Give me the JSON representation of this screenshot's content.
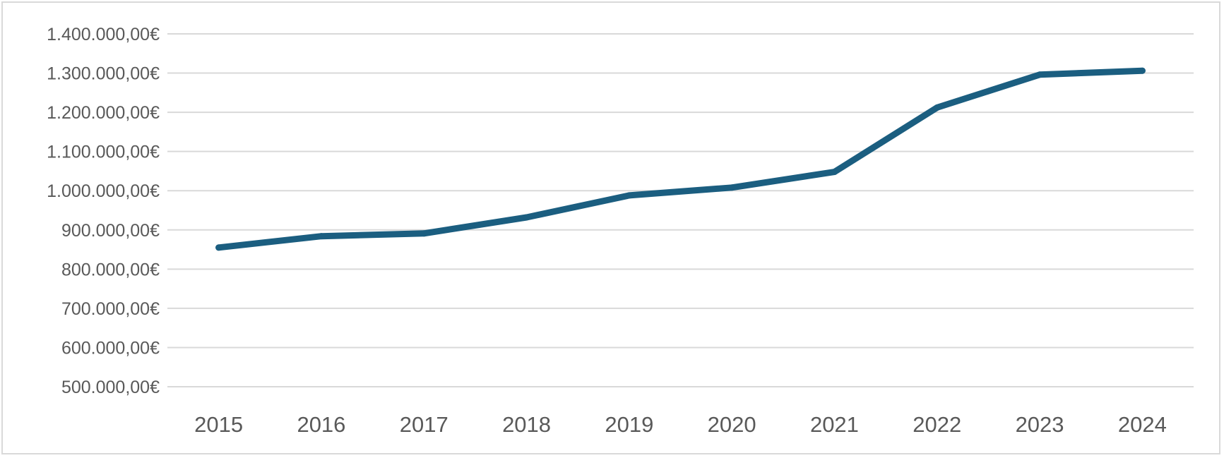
{
  "chart_data": {
    "type": "line",
    "title": "",
    "xlabel": "",
    "ylabel": "",
    "x": [
      "2015",
      "2016",
      "2017",
      "2018",
      "2019",
      "2020",
      "2021",
      "2022",
      "2023",
      "2024"
    ],
    "series": [
      {
        "values": [
          855000,
          884000,
          891000,
          932000,
          988000,
          1008000,
          1048000,
          1212000,
          1296000,
          1306000
        ],
        "color": "#1b5e80"
      }
    ],
    "ylim": [
      500000,
      1400000
    ],
    "y_ticks": [
      500000,
      600000,
      700000,
      800000,
      900000,
      1000000,
      1100000,
      1200000,
      1300000,
      1400000
    ],
    "y_tick_labels": [
      "500.000,00€",
      "600.000,00€",
      "700.000,00€",
      "800.000,00€",
      "900.000,00€",
      "1.000.000,00€",
      "1.100.000,00€",
      "1.200.000,00€",
      "1.300.000,00€",
      "1.400.000,00€"
    ],
    "grid": true,
    "legend": "none"
  }
}
